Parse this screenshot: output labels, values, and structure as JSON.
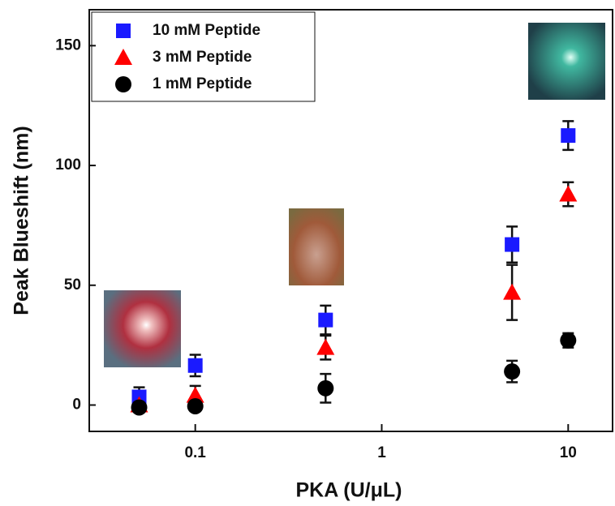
{
  "chart_data": {
    "type": "scatter",
    "x_label": "PKA (U/μL)",
    "y_label": "Peak Blueshift (nm)",
    "x": [
      0.05,
      0.1,
      0.5,
      5,
      10
    ],
    "xscale": "log",
    "xlim": [
      0.027,
      17.3
    ],
    "xticks": [
      0.1,
      1,
      10
    ],
    "ylim": [
      -11,
      165
    ],
    "yticks": [
      0,
      50,
      100,
      150
    ],
    "legend": "upper left",
    "series": [
      {
        "name": "10 mM Peptide",
        "color": "#1a1aff",
        "marker": "square",
        "values": [
          3.4,
          16.5,
          35.5,
          67,
          112.5
        ],
        "errors": [
          4,
          4.5,
          6,
          7.5,
          6
        ]
      },
      {
        "name": "3 mM Peptide",
        "color": "#ff0000",
        "marker": "triangle",
        "values": [
          0,
          4,
          24,
          47,
          88
        ],
        "errors": [
          1,
          4,
          5,
          11.5,
          5
        ]
      },
      {
        "name": "1 mM Peptide",
        "color": "#000000",
        "marker": "circle",
        "values": [
          -1,
          -0.5,
          7,
          14,
          27
        ],
        "errors": [
          1,
          1,
          6,
          4.5,
          3
        ]
      }
    ]
  }
}
